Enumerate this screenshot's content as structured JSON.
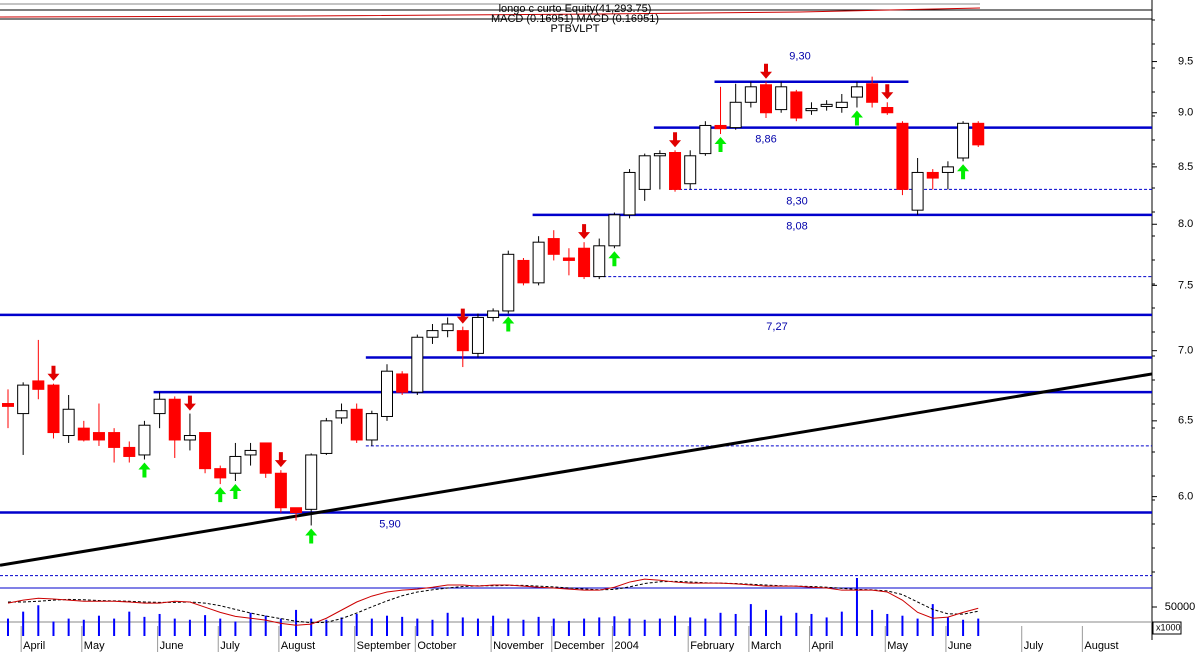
{
  "chart_data": {
    "type": "candlestick",
    "header": [
      "longo c curto Equity(41,293.75)",
      "MACD (0.16951) MACD (0.16951)",
      "PTBVLPT"
    ],
    "log_scale": true,
    "ylim": [
      5.5,
      10
    ],
    "yticks": [
      {
        "value": 6,
        "label": "6.0"
      },
      6.5,
      {
        "value": 7,
        "label": "7.0"
      },
      7.5,
      {
        "value": 8,
        "label": "8.0"
      },
      8.5,
      {
        "value": 9,
        "label": "9.0"
      },
      9.5
    ],
    "up_color": "#ffffff",
    "down_color": "#ff0000",
    "ohlc": [
      [
        6.62,
        6.72,
        6.45,
        6.6
      ],
      [
        6.55,
        6.77,
        6.27,
        6.75
      ],
      [
        6.78,
        7.08,
        6.65,
        6.72
      ],
      [
        6.75,
        6.76,
        6.38,
        6.42
      ],
      [
        6.4,
        6.68,
        6.35,
        6.58
      ],
      [
        6.45,
        6.5,
        6.36,
        6.37
      ],
      [
        6.42,
        6.62,
        6.33,
        6.37
      ],
      [
        6.42,
        6.45,
        6.22,
        6.32
      ],
      [
        6.32,
        6.36,
        6.22,
        6.26
      ],
      [
        6.27,
        6.5,
        6.24,
        6.47
      ],
      [
        6.55,
        6.7,
        6.45,
        6.65
      ],
      [
        6.65,
        6.67,
        6.25,
        6.37
      ],
      [
        6.37,
        6.55,
        6.3,
        6.4
      ],
      [
        6.42,
        6.42,
        6.15,
        6.18
      ],
      [
        6.18,
        6.2,
        6.08,
        6.12
      ],
      [
        6.15,
        6.35,
        6.1,
        6.26
      ],
      [
        6.27,
        6.35,
        6.2,
        6.3
      ],
      [
        6.35,
        6.35,
        6.12,
        6.15
      ],
      [
        6.15,
        6.17,
        5.9,
        5.93
      ],
      [
        5.93,
        5.93,
        5.85,
        5.9
      ],
      [
        5.92,
        6.28,
        5.82,
        6.27
      ],
      [
        6.28,
        6.52,
        6.27,
        6.5
      ],
      [
        6.52,
        6.62,
        6.48,
        6.57
      ],
      [
        6.58,
        6.62,
        6.35,
        6.37
      ],
      [
        6.37,
        6.57,
        6.33,
        6.55
      ],
      [
        6.53,
        6.9,
        6.5,
        6.85
      ],
      [
        6.83,
        6.85,
        6.68,
        6.7
      ],
      [
        6.7,
        7.12,
        6.68,
        7.1
      ],
      [
        7.1,
        7.2,
        7.05,
        7.15
      ],
      [
        7.15,
        7.25,
        7.1,
        7.2
      ],
      [
        7.15,
        7.18,
        6.88,
        7.0
      ],
      [
        6.98,
        7.28,
        6.95,
        7.25
      ],
      [
        7.25,
        7.32,
        7.22,
        7.3
      ],
      [
        7.3,
        7.78,
        7.28,
        7.75
      ],
      [
        7.7,
        7.72,
        7.5,
        7.52
      ],
      [
        7.52,
        7.9,
        7.5,
        7.85
      ],
      [
        7.88,
        7.95,
        7.7,
        7.75
      ],
      [
        7.72,
        7.8,
        7.58,
        7.7
      ],
      [
        7.8,
        7.85,
        7.55,
        7.57
      ],
      [
        7.57,
        7.88,
        7.55,
        7.82
      ],
      [
        7.82,
        8.1,
        7.8,
        8.08
      ],
      [
        8.08,
        8.48,
        8.05,
        8.45
      ],
      [
        8.3,
        8.62,
        8.2,
        8.6
      ],
      [
        8.6,
        8.65,
        8.3,
        8.62
      ],
      [
        8.63,
        8.65,
        8.28,
        8.3
      ],
      [
        8.35,
        8.65,
        8.3,
        8.6
      ],
      [
        8.62,
        8.92,
        8.6,
        8.88
      ],
      [
        8.88,
        9.25,
        8.8,
        8.85
      ],
      [
        8.86,
        9.28,
        8.84,
        9.1
      ],
      [
        9.1,
        9.3,
        9.05,
        9.25
      ],
      [
        9.27,
        9.3,
        8.95,
        9.0
      ],
      [
        9.03,
        9.3,
        9.0,
        9.25
      ],
      [
        9.2,
        9.22,
        8.92,
        8.95
      ],
      [
        9.02,
        9.1,
        8.98,
        9.04
      ],
      [
        9.06,
        9.12,
        9.02,
        9.08
      ],
      [
        9.05,
        9.18,
        9.0,
        9.1
      ],
      [
        9.15,
        9.3,
        9.05,
        9.25
      ],
      [
        9.28,
        9.35,
        9.05,
        9.1
      ],
      [
        9.05,
        9.1,
        8.98,
        9.0
      ],
      [
        8.9,
        8.92,
        8.25,
        8.3
      ],
      [
        8.12,
        8.58,
        8.08,
        8.45
      ],
      [
        8.45,
        8.48,
        8.3,
        8.4
      ],
      [
        8.45,
        8.55,
        8.3,
        8.5
      ],
      [
        8.58,
        8.92,
        8.55,
        8.9
      ],
      [
        8.9,
        8.92,
        8.68,
        8.7
      ]
    ],
    "x_labels": [
      {
        "label": "April",
        "index": 1
      },
      {
        "label": "May",
        "index": 5
      },
      {
        "label": "June",
        "index": 10
      },
      {
        "label": "July",
        "index": 14
      },
      {
        "label": "August",
        "index": 18
      },
      {
        "label": "September",
        "index": 23
      },
      {
        "label": "October",
        "index": 27
      },
      {
        "label": "November",
        "index": 32
      },
      {
        "label": "December",
        "index": 36
      },
      {
        "label": "2004",
        "index": 40
      },
      {
        "label": "February",
        "index": 45
      },
      {
        "label": "March",
        "index": 49
      },
      {
        "label": "April",
        "index": 53
      },
      {
        "label": "May",
        "index": 58
      },
      {
        "label": "June",
        "index": 62
      },
      {
        "label": "July",
        "index": 67
      },
      {
        "label": "August",
        "index": 71
      }
    ],
    "signals": {
      "sell": [
        3,
        12,
        18,
        30,
        38,
        44,
        50,
        58
      ],
      "buy": [
        9,
        14,
        15,
        20,
        33,
        40,
        47,
        56,
        63
      ],
      "sell_color": "#e00000",
      "buy_color": "#00ee00"
    },
    "levels": [
      {
        "value": 9.3,
        "label": "9,30",
        "from": 47,
        "to": 59
      },
      {
        "value": 8.86,
        "label": "8,86",
        "from": 43
      },
      {
        "value": 8.3,
        "label": "8,30",
        "from": 44,
        "dotted": true
      },
      {
        "value": 8.08,
        "label": "8,08",
        "from": 35
      },
      {
        "value": 7.57,
        "from": 39,
        "dotted": true
      },
      {
        "value": 7.27,
        "label": "7,27"
      },
      {
        "value": 6.95,
        "from": 24
      },
      {
        "value": 6.7,
        "from": 10
      },
      {
        "value": 6.33,
        "from": 24,
        "dotted": true
      },
      {
        "value": 5.9,
        "label": "5,90"
      },
      {
        "value": 5.52,
        "dotted": true,
        "thin": true
      }
    ],
    "level_color": "#0000cc",
    "trend": {
      "values": [
        5.58,
        6.83
      ],
      "color": "#000000"
    },
    "macd": {
      "ylim": [
        -0.7,
        0.6
      ],
      "color": "#cc0000",
      "signal_color": "#000000",
      "values": [
        -0.08,
        0,
        0.05,
        0.03,
        0,
        -0.03,
        -0.03,
        -0.03,
        -0.05,
        -0.08,
        -0.08,
        -0.03,
        -0.05,
        -0.19,
        -0.33,
        -0.44,
        -0.49,
        -0.54,
        -0.63,
        -0.68,
        -0.65,
        -0.49,
        -0.27,
        -0.05,
        0.11,
        0.22,
        0.27,
        0.3,
        0.35,
        0.41,
        0.41,
        0.38,
        0.41,
        0.41,
        0.38,
        0.35,
        0.33,
        0.3,
        0.27,
        0.27,
        0.35,
        0.49,
        0.57,
        0.54,
        0.49,
        0.46,
        0.46,
        0.46,
        0.44,
        0.41,
        0.38,
        0.38,
        0.38,
        0.35,
        0.33,
        0.27,
        0.27,
        0.27,
        0.22,
        0,
        -0.33,
        -0.49,
        -0.46,
        -0.33,
        -0.22
      ],
      "signal": [
        -0.05,
        -0.05,
        -0.03,
        0,
        0.02,
        0.01,
        -0.01,
        -0.02,
        -0.03,
        -0.05,
        -0.06,
        -0.06,
        -0.05,
        -0.08,
        -0.15,
        -0.25,
        -0.35,
        -0.43,
        -0.5,
        -0.57,
        -0.61,
        -0.6,
        -0.5,
        -0.35,
        -0.18,
        -0.02,
        0.12,
        0.22,
        0.28,
        0.33,
        0.37,
        0.39,
        0.39,
        0.4,
        0.4,
        0.38,
        0.36,
        0.33,
        0.3,
        0.28,
        0.29,
        0.36,
        0.45,
        0.5,
        0.51,
        0.49,
        0.47,
        0.46,
        0.45,
        0.43,
        0.41,
        0.39,
        0.38,
        0.37,
        0.35,
        0.32,
        0.29,
        0.28,
        0.25,
        0.15,
        -0.05,
        -0.25,
        -0.37,
        -0.38,
        -0.3
      ]
    },
    "volume": {
      "ylim": [
        0,
        100000
      ],
      "yticks": [
        50000
      ],
      "unit_label": "x1000",
      "color": "#0000ff",
      "values": [
        30000,
        42000,
        53000,
        25000,
        30000,
        28000,
        35000,
        30000,
        42000,
        33000,
        38000,
        30000,
        28000,
        36000,
        30000,
        25000,
        40000,
        35000,
        30000,
        45000,
        30000,
        28000,
        32000,
        38000,
        30000,
        35000,
        33000,
        30000,
        28000,
        40000,
        32000,
        30000,
        35000,
        30000,
        28000,
        33000,
        30000,
        26000,
        30000,
        32000,
        34000,
        30000,
        28000,
        30000,
        35000,
        32000,
        30000,
        40000,
        38000,
        55000,
        45000,
        35000,
        40000,
        38000,
        32000,
        42000,
        100000,
        45000,
        38000,
        35000,
        30000,
        55000,
        32000,
        28000,
        30000
      ]
    }
  }
}
